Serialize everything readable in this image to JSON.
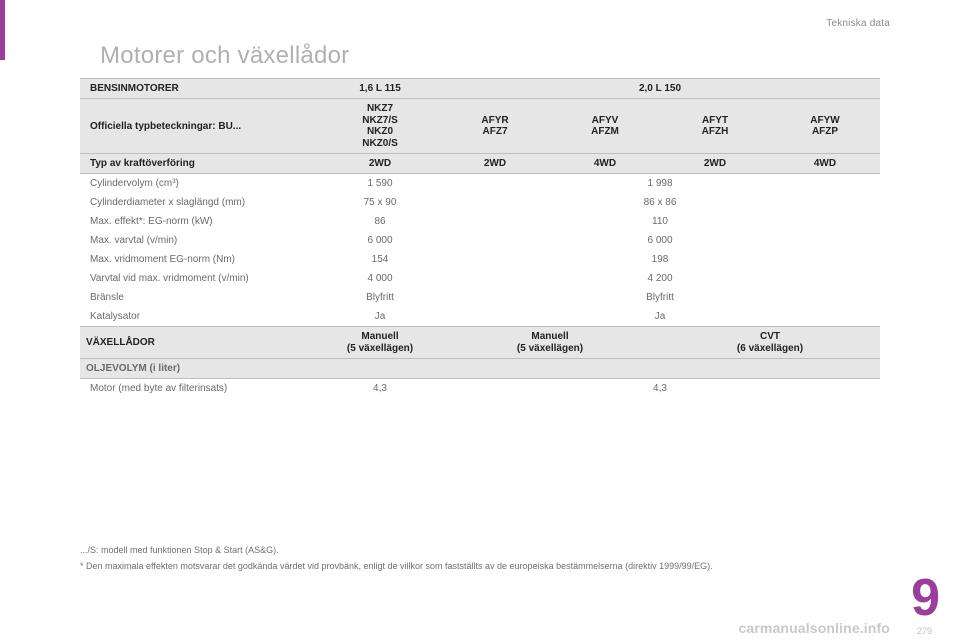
{
  "colors": {
    "accent": "#9b3e9b",
    "header_bg": "#e6e6e6",
    "header_border": "#bfbfbf",
    "body_text": "#222222",
    "muted_text": "#6a6a6a",
    "light_text": "#b0b0b0",
    "watermark_text": "#c9c9c9",
    "page_bg": "#ffffff"
  },
  "page": {
    "section_label": "Tekniska data",
    "title": "Motorer och växellådor",
    "chapter_number": "9",
    "page_number": "279",
    "watermark": "carmanualsonline.info"
  },
  "table": {
    "row_engines": {
      "label": "BENSINMOTORER",
      "col1": "1,6 L 115",
      "col2": "2,0 L 150"
    },
    "row_type_designations": {
      "label": "Officiella typbeteckningar: BU...",
      "c1": "NKZ7\nNKZ7/S\nNKZ0\nNKZ0/S",
      "c2": "AFYR\nAFZ7",
      "c3": "AFYV\nAFZM",
      "c4": "AFYT\nAFZH",
      "c5": "AFYW\nAFZP"
    },
    "row_drivetrain": {
      "label": "Typ av kraftöverföring",
      "c1": "2WD",
      "c2": "2WD",
      "c3": "4WD",
      "c4": "2WD",
      "c5": "4WD"
    },
    "data_rows": [
      {
        "label": "Cylindervolym (cm³)",
        "v1": "1 590",
        "v2": "1 998"
      },
      {
        "label": "Cylinderdiameter x slaglängd (mm)",
        "v1": "75 x 90",
        "v2": "86 x 86"
      },
      {
        "label": "Max. effekt*: EG-norm (kW)",
        "v1": "86",
        "v2": "110"
      },
      {
        "label": "Max. varvtal (v/min)",
        "v1": "6 000",
        "v2": "6 000"
      },
      {
        "label": "Max. vridmoment EG-norm (Nm)",
        "v1": "154",
        "v2": "198"
      },
      {
        "label": "Varvtal vid max. vridmoment (v/min)",
        "v1": "4 000",
        "v2": "4 200"
      },
      {
        "label": "Bränsle",
        "v1": "Blyfritt",
        "v2": "Blyfritt"
      },
      {
        "label": "Katalysator",
        "v1": "Ja",
        "v2": "Ja"
      }
    ],
    "row_gearboxes": {
      "label": "VÄXELLÅDOR",
      "g1": "Manuell\n(5 växellägen)",
      "g2": "Manuell\n(5 växellägen)",
      "g3": "CVT\n(6 växellägen)"
    },
    "row_oil_header": {
      "label": "OLJEVOLYM (i liter)"
    },
    "row_oil": {
      "label": "Motor (med byte av filterinsats)",
      "v1": "4,3",
      "v2": "4,3"
    }
  },
  "footnotes": {
    "n1": ".../S: modell med funktionen Stop & Start (AS&G).",
    "n2": "* Den maximala effekten motsvarar det godkända värdet vid provbänk, enligt de villkor som fastställts av de europeiska bestämmelserna (direktiv 1999/99/EG)."
  }
}
